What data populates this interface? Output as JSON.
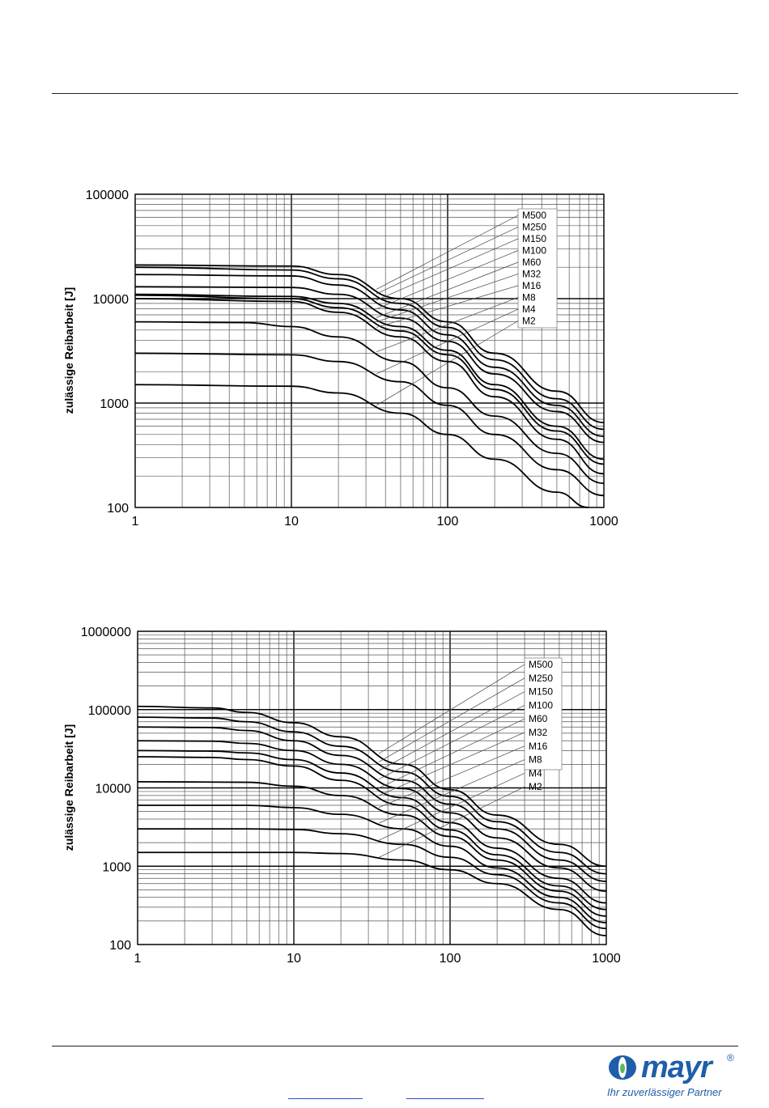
{
  "chart_data": [
    {
      "type": "line",
      "xlabel": "",
      "ylabel": "zulässige Reibarbeit [J]",
      "xscale": "log",
      "yscale": "log",
      "xlim": [
        1,
        1000
      ],
      "ylim": [
        100,
        100000
      ],
      "x_ticks": [
        "1",
        "10",
        "100",
        "1000"
      ],
      "y_ticks": [
        "100",
        "1000",
        "10000",
        "100000"
      ],
      "grid": true,
      "legend": "top-right",
      "legend_labels": [
        "M500",
        "M250",
        "M150",
        "M100",
        "M60",
        "M32",
        "M16",
        "M8",
        "M4",
        "M2"
      ],
      "series": [
        {
          "name": "M500",
          "x": [
            1,
            10,
            20,
            50,
            100,
            200,
            500,
            1000
          ],
          "y": [
            21000,
            20500,
            17000,
            10000,
            6000,
            3000,
            1300,
            650
          ]
        },
        {
          "name": "M250",
          "x": [
            1,
            10,
            20,
            50,
            100,
            200,
            500,
            1000
          ],
          "y": [
            20000,
            18800,
            15500,
            9000,
            5300,
            2600,
            1100,
            560
          ]
        },
        {
          "name": "M150",
          "x": [
            1,
            10,
            20,
            50,
            100,
            200,
            500,
            1000
          ],
          "y": [
            17000,
            16500,
            13500,
            7800,
            4500,
            2200,
            950,
            480
          ]
        },
        {
          "name": "M100",
          "x": [
            1,
            10,
            20,
            50,
            100,
            200,
            500,
            1000
          ],
          "y": [
            13000,
            12800,
            11000,
            6500,
            3900,
            1900,
            830,
            420
          ]
        },
        {
          "name": "M60",
          "x": [
            1,
            10,
            20,
            50,
            100,
            200,
            500,
            1000
          ],
          "y": [
            11000,
            10500,
            9000,
            5400,
            3200,
            1500,
            600,
            290
          ]
        },
        {
          "name": "M32",
          "x": [
            1,
            10,
            20,
            50,
            100,
            200,
            500,
            1000
          ],
          "y": [
            10800,
            10000,
            8200,
            4900,
            2900,
            1350,
            540,
            260
          ]
        },
        {
          "name": "M16",
          "x": [
            1,
            10,
            20,
            50,
            100,
            200,
            500,
            1000
          ],
          "y": [
            10000,
            9400,
            7400,
            4300,
            2500,
            1150,
            450,
            210
          ]
        },
        {
          "name": "M8",
          "x": [
            1,
            5,
            10,
            20,
            50,
            100,
            200,
            500,
            1000
          ],
          "y": [
            6000,
            5900,
            5400,
            4300,
            2500,
            1400,
            750,
            330,
            170
          ]
        },
        {
          "name": "M4",
          "x": [
            1,
            10,
            20,
            50,
            100,
            200,
            500,
            1000
          ],
          "y": [
            3000,
            2900,
            2500,
            1600,
            950,
            500,
            230,
            130
          ]
        },
        {
          "name": "M2",
          "x": [
            1,
            10,
            20,
            50,
            100,
            200,
            500,
            800
          ],
          "y": [
            1500,
            1450,
            1250,
            800,
            500,
            290,
            140,
            100
          ]
        }
      ]
    },
    {
      "type": "line",
      "xlabel": "",
      "ylabel": "zulässige Reibarbeit [J]",
      "xscale": "log",
      "yscale": "log",
      "xlim": [
        1,
        1000
      ],
      "ylim": [
        100,
        1000000
      ],
      "x_ticks": [
        "1",
        "10",
        "100",
        "1000"
      ],
      "y_ticks": [
        "100",
        "1000",
        "10000",
        "100000",
        "1000000"
      ],
      "grid": true,
      "legend": "top-right",
      "legend_labels": [
        "M500",
        "M250",
        "M150",
        "M100",
        "M60",
        "M32",
        "M16",
        "M8",
        "M4",
        "M2"
      ],
      "series": [
        {
          "name": "M500",
          "x": [
            1,
            3,
            5,
            10,
            20,
            50,
            100,
            200,
            500,
            1000
          ],
          "y": [
            110000,
            105000,
            92000,
            68000,
            45000,
            20000,
            9500,
            4500,
            1900,
            1000
          ]
        },
        {
          "name": "M250",
          "x": [
            1,
            3,
            5,
            10,
            20,
            50,
            100,
            200,
            500,
            1000
          ],
          "y": [
            80000,
            78000,
            70000,
            52000,
            34000,
            16000,
            7800,
            3700,
            1500,
            800
          ]
        },
        {
          "name": "M150",
          "x": [
            1,
            3,
            5,
            10,
            20,
            50,
            100,
            200,
            500,
            1000
          ],
          "y": [
            60000,
            59000,
            54000,
            40000,
            26000,
            12500,
            6200,
            3000,
            1200,
            640
          ]
        },
        {
          "name": "M100",
          "x": [
            1,
            3,
            5,
            10,
            20,
            50,
            100,
            200,
            500,
            1000
          ],
          "y": [
            40000,
            39500,
            37000,
            30000,
            20000,
            9800,
            4800,
            2300,
            950,
            480
          ]
        },
        {
          "name": "M60",
          "x": [
            1,
            3,
            5,
            10,
            20,
            50,
            100,
            200,
            500,
            1000
          ],
          "y": [
            30000,
            29500,
            28000,
            23000,
            15500,
            7500,
            3600,
            1700,
            700,
            340
          ]
        },
        {
          "name": "M32",
          "x": [
            1,
            3,
            5,
            10,
            20,
            50,
            100,
            200,
            500,
            1000
          ],
          "y": [
            25000,
            24500,
            23000,
            19000,
            12500,
            6000,
            2900,
            1400,
            560,
            280
          ]
        },
        {
          "name": "M16",
          "x": [
            1,
            5,
            10,
            20,
            50,
            100,
            200,
            500,
            1000
          ],
          "y": [
            12000,
            11800,
            10500,
            8000,
            4500,
            2400,
            1200,
            480,
            230
          ]
        },
        {
          "name": "M8",
          "x": [
            1,
            5,
            10,
            20,
            50,
            100,
            200,
            500,
            1000
          ],
          "y": [
            6000,
            6000,
            5600,
            4600,
            3000,
            1800,
            950,
            400,
            190
          ]
        },
        {
          "name": "M4",
          "x": [
            1,
            5,
            10,
            20,
            50,
            100,
            200,
            500,
            1000
          ],
          "y": [
            3000,
            3000,
            2950,
            2600,
            1900,
            1300,
            780,
            340,
            160
          ]
        },
        {
          "name": "M2",
          "x": [
            1,
            5,
            10,
            20,
            50,
            100,
            200,
            500,
            1000
          ],
          "y": [
            1500,
            1500,
            1500,
            1450,
            1200,
            900,
            600,
            280,
            130
          ]
        }
      ]
    }
  ],
  "logo": {
    "word": "mayr",
    "registered": "®",
    "tagline": "Ihr zuverlässiger Partner"
  }
}
